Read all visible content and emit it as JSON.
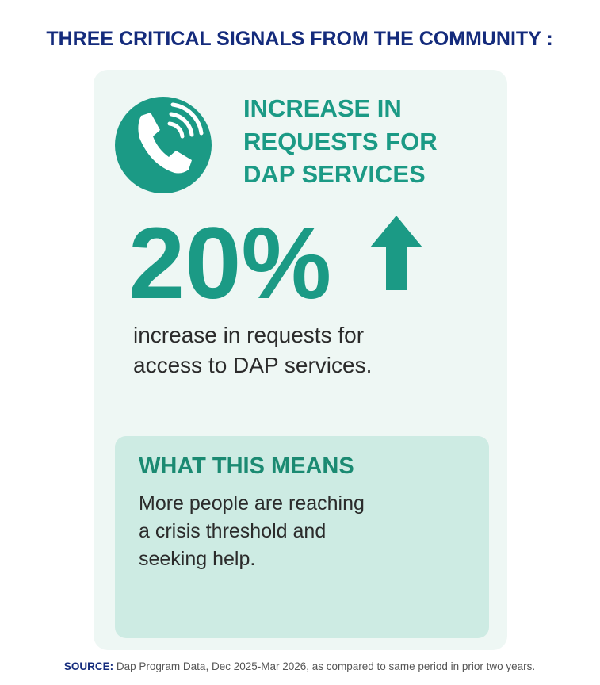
{
  "title": "THREE CRITICAL SIGNALS FROM THE COMMUNITY :",
  "card": {
    "heading_lines": [
      "INCREASE IN",
      "REQUESTS FOR",
      "DAP SERVICES"
    ],
    "stat": "20%",
    "description_lines": [
      "increase in requests for",
      "access to DAP services."
    ],
    "meaning": {
      "heading": "WHAT THIS MEANS",
      "lines": [
        "More people are reaching",
        "a crisis threshold and",
        "seeking help."
      ]
    }
  },
  "source": {
    "label": "SOURCE:",
    "text": "Dap Program Data, Dec 2025-Mar 2026, as compared to same period in prior two years."
  }
}
